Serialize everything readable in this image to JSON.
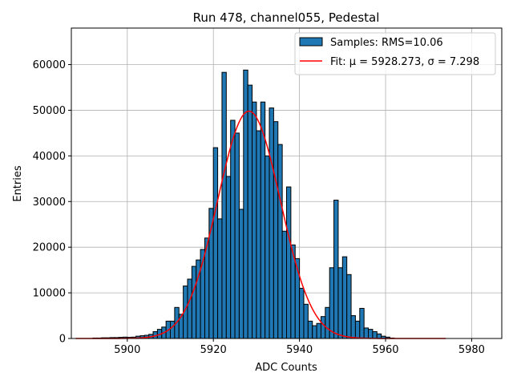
{
  "chart_data": {
    "type": "bar",
    "title": "Run 478, channel055, Pedestal",
    "xlabel": "ADC Counts",
    "ylabel": "Entries",
    "xlim": [
      5887,
      5987
    ],
    "ylim": [
      0,
      68000
    ],
    "grid": true,
    "legend_position": "top-right",
    "xticks": [
      5900,
      5920,
      5940,
      5960,
      5980
    ],
    "yticks": [
      0,
      10000,
      20000,
      30000,
      40000,
      50000,
      60000
    ],
    "xtick_labels": [
      "5900",
      "5920",
      "5940",
      "5960",
      "5980"
    ],
    "ytick_labels": [
      "0",
      "10000",
      "20000",
      "30000",
      "40000",
      "50000",
      "60000"
    ],
    "histogram": {
      "name": "Samples: RMS=10.06",
      "color": "#1f77b4",
      "edgecolor": "#000000",
      "bin_width": 1,
      "bin_starts": [
        5892,
        5893,
        5894,
        5895,
        5896,
        5897,
        5898,
        5899,
        5900,
        5901,
        5902,
        5903,
        5904,
        5905,
        5906,
        5907,
        5908,
        5909,
        5910,
        5911,
        5912,
        5913,
        5914,
        5915,
        5916,
        5917,
        5918,
        5919,
        5920,
        5921,
        5922,
        5923,
        5924,
        5925,
        5926,
        5927,
        5928,
        5929,
        5930,
        5931,
        5932,
        5933,
        5934,
        5935,
        5936,
        5937,
        5938,
        5939,
        5940,
        5941,
        5942,
        5943,
        5944,
        5945,
        5946,
        5947,
        5948,
        5949,
        5950,
        5951,
        5952,
        5953,
        5954,
        5955,
        5956,
        5957,
        5958,
        5959,
        5960,
        5961
      ],
      "counts": [
        100,
        100,
        150,
        150,
        200,
        200,
        250,
        300,
        250,
        300,
        500,
        600,
        700,
        900,
        1500,
        2000,
        2500,
        3800,
        3800,
        6800,
        5300,
        11500,
        13000,
        15800,
        17200,
        19500,
        22000,
        28500,
        41800,
        26200,
        58300,
        35500,
        47800,
        45000,
        28300,
        58800,
        55500,
        51800,
        45500,
        51800,
        40000,
        50500,
        47500,
        42500,
        23500,
        33200,
        20500,
        17500,
        11000,
        7500,
        3800,
        2800,
        3300,
        4800,
        6800,
        15500,
        30300,
        15500,
        17900,
        14000,
        5000,
        3800,
        6600,
        2300,
        2000,
        1500,
        1000,
        500,
        300,
        100
      ]
    },
    "fit": {
      "name": "Fit: μ = 5928.273, σ = 7.298",
      "color": "#ff0000",
      "mu": 5928.273,
      "sigma": 7.298,
      "amplitude": 49800,
      "x_range": [
        5888,
        5974
      ]
    }
  }
}
